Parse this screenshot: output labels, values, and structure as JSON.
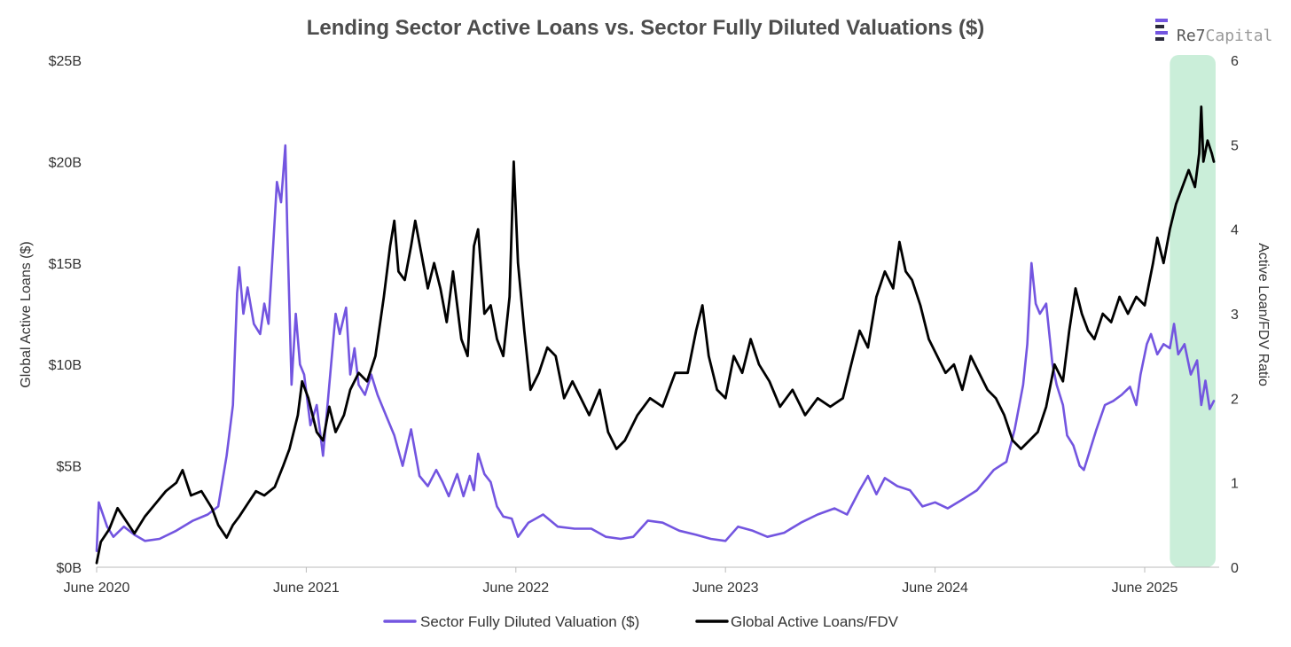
{
  "brand": {
    "name": "Re7",
    "suffix": "Capital"
  },
  "chart_data": {
    "type": "line",
    "title": "Lending Sector Active Loans vs. Sector Fully Diluted Valuations ($)",
    "ylabel_left": "Global Active Loans ($)",
    "ylabel_right": "Active Loan/FDV Ratio",
    "xlim": [
      2020.42,
      2025.75
    ],
    "ylim_left": [
      0,
      25
    ],
    "ylim_right": [
      0,
      6
    ],
    "x_ticks": [
      {
        "value": 2020.42,
        "label": "June 2020"
      },
      {
        "value": 2021.42,
        "label": "June 2021"
      },
      {
        "value": 2022.42,
        "label": "June 2022"
      },
      {
        "value": 2023.42,
        "label": "June 2023"
      },
      {
        "value": 2024.42,
        "label": "June 2024"
      },
      {
        "value": 2025.42,
        "label": "June 2025"
      }
    ],
    "y_ticks_left": [
      {
        "value": 0,
        "label": "$0B"
      },
      {
        "value": 5,
        "label": "$5B"
      },
      {
        "value": 10,
        "label": "$10B"
      },
      {
        "value": 15,
        "label": "$15B"
      },
      {
        "value": 20,
        "label": "$20B"
      },
      {
        "value": 25,
        "label": "$25B"
      }
    ],
    "y_ticks_right": [
      {
        "value": 0,
        "label": "0"
      },
      {
        "value": 1,
        "label": "1"
      },
      {
        "value": 2,
        "label": "2"
      },
      {
        "value": 3,
        "label": "3"
      },
      {
        "value": 4,
        "label": "4"
      },
      {
        "value": 5,
        "label": "5"
      },
      {
        "value": 6,
        "label": "6"
      }
    ],
    "highlight": {
      "x_start": 2025.54,
      "x_end": 2025.78,
      "color": "#b8e8cc"
    },
    "legend": [
      {
        "name": "Sector Fully Diluted Valuation ($)",
        "color": "#7355e0"
      },
      {
        "name": "Global Active Loans/FDV",
        "color": "#000000"
      }
    ],
    "series": [
      {
        "name": "Sector Fully Diluted Valuation ($)",
        "axis": "left",
        "unit": "$B",
        "color": "#7355e0",
        "points": [
          [
            2020.42,
            0.8
          ],
          [
            2020.43,
            3.2
          ],
          [
            2020.47,
            2.0
          ],
          [
            2020.5,
            1.5
          ],
          [
            2020.55,
            2.0
          ],
          [
            2020.6,
            1.6
          ],
          [
            2020.65,
            1.3
          ],
          [
            2020.72,
            1.4
          ],
          [
            2020.8,
            1.8
          ],
          [
            2020.88,
            2.3
          ],
          [
            2020.95,
            2.6
          ],
          [
            2021.0,
            3.0
          ],
          [
            2021.04,
            5.5
          ],
          [
            2021.07,
            8.0
          ],
          [
            2021.09,
            13.5
          ],
          [
            2021.1,
            14.8
          ],
          [
            2021.12,
            12.5
          ],
          [
            2021.14,
            13.8
          ],
          [
            2021.17,
            12.0
          ],
          [
            2021.2,
            11.5
          ],
          [
            2021.22,
            13.0
          ],
          [
            2021.24,
            12.0
          ],
          [
            2021.26,
            15.5
          ],
          [
            2021.28,
            19.0
          ],
          [
            2021.3,
            18.0
          ],
          [
            2021.32,
            20.8
          ],
          [
            2021.33,
            16.5
          ],
          [
            2021.35,
            9.0
          ],
          [
            2021.37,
            12.5
          ],
          [
            2021.39,
            10.0
          ],
          [
            2021.41,
            9.5
          ],
          [
            2021.44,
            7.0
          ],
          [
            2021.47,
            8.0
          ],
          [
            2021.5,
            5.5
          ],
          [
            2021.53,
            9.0
          ],
          [
            2021.56,
            12.5
          ],
          [
            2021.58,
            11.5
          ],
          [
            2021.61,
            12.8
          ],
          [
            2021.63,
            9.5
          ],
          [
            2021.65,
            10.8
          ],
          [
            2021.67,
            9.0
          ],
          [
            2021.7,
            8.5
          ],
          [
            2021.73,
            9.5
          ],
          [
            2021.76,
            8.5
          ],
          [
            2021.8,
            7.5
          ],
          [
            2021.84,
            6.5
          ],
          [
            2021.88,
            5.0
          ],
          [
            2021.92,
            6.8
          ],
          [
            2021.96,
            4.5
          ],
          [
            2022.0,
            4.0
          ],
          [
            2022.04,
            4.8
          ],
          [
            2022.07,
            4.2
          ],
          [
            2022.1,
            3.5
          ],
          [
            2022.14,
            4.6
          ],
          [
            2022.17,
            3.5
          ],
          [
            2022.2,
            4.5
          ],
          [
            2022.22,
            3.8
          ],
          [
            2022.24,
            5.6
          ],
          [
            2022.27,
            4.6
          ],
          [
            2022.3,
            4.2
          ],
          [
            2022.33,
            3.0
          ],
          [
            2022.36,
            2.5
          ],
          [
            2022.4,
            2.4
          ],
          [
            2022.43,
            1.5
          ],
          [
            2022.48,
            2.2
          ],
          [
            2022.55,
            2.6
          ],
          [
            2022.62,
            2.0
          ],
          [
            2022.7,
            1.9
          ],
          [
            2022.78,
            1.9
          ],
          [
            2022.85,
            1.5
          ],
          [
            2022.92,
            1.4
          ],
          [
            2022.98,
            1.5
          ],
          [
            2023.05,
            2.3
          ],
          [
            2023.12,
            2.2
          ],
          [
            2023.2,
            1.8
          ],
          [
            2023.28,
            1.6
          ],
          [
            2023.35,
            1.4
          ],
          [
            2023.42,
            1.3
          ],
          [
            2023.48,
            2.0
          ],
          [
            2023.55,
            1.8
          ],
          [
            2023.62,
            1.5
          ],
          [
            2023.7,
            1.7
          ],
          [
            2023.78,
            2.2
          ],
          [
            2023.86,
            2.6
          ],
          [
            2023.94,
            2.9
          ],
          [
            2024.0,
            2.6
          ],
          [
            2024.06,
            3.8
          ],
          [
            2024.1,
            4.5
          ],
          [
            2024.14,
            3.6
          ],
          [
            2024.18,
            4.4
          ],
          [
            2024.24,
            4.0
          ],
          [
            2024.3,
            3.8
          ],
          [
            2024.36,
            3.0
          ],
          [
            2024.42,
            3.2
          ],
          [
            2024.48,
            2.9
          ],
          [
            2024.56,
            3.4
          ],
          [
            2024.62,
            3.8
          ],
          [
            2024.7,
            4.8
          ],
          [
            2024.76,
            5.2
          ],
          [
            2024.8,
            6.8
          ],
          [
            2024.84,
            9.0
          ],
          [
            2024.86,
            11.0
          ],
          [
            2024.88,
            15.0
          ],
          [
            2024.9,
            13.0
          ],
          [
            2024.92,
            12.5
          ],
          [
            2024.95,
            13.0
          ],
          [
            2024.98,
            10.0
          ],
          [
            2025.0,
            9.0
          ],
          [
            2025.03,
            8.0
          ],
          [
            2025.05,
            6.5
          ],
          [
            2025.08,
            6.0
          ],
          [
            2025.11,
            5.0
          ],
          [
            2025.13,
            4.8
          ],
          [
            2025.16,
            5.8
          ],
          [
            2025.19,
            6.8
          ],
          [
            2025.23,
            8.0
          ],
          [
            2025.27,
            8.2
          ],
          [
            2025.31,
            8.5
          ],
          [
            2025.35,
            8.9
          ],
          [
            2025.38,
            8.0
          ],
          [
            2025.4,
            9.5
          ],
          [
            2025.43,
            11.0
          ],
          [
            2025.45,
            11.5
          ],
          [
            2025.48,
            10.5
          ],
          [
            2025.51,
            11.0
          ],
          [
            2025.54,
            10.8
          ],
          [
            2025.56,
            12.0
          ],
          [
            2025.58,
            10.5
          ],
          [
            2025.61,
            11.0
          ],
          [
            2025.64,
            9.5
          ],
          [
            2025.67,
            10.2
          ],
          [
            2025.69,
            8.0
          ],
          [
            2025.71,
            9.2
          ],
          [
            2025.73,
            7.8
          ],
          [
            2025.75,
            8.2
          ]
        ]
      },
      {
        "name": "Global Active Loans/FDV",
        "axis": "right",
        "unit": "ratio",
        "color": "#000000",
        "points": [
          [
            2020.42,
            0.05
          ],
          [
            2020.44,
            0.3
          ],
          [
            2020.48,
            0.45
          ],
          [
            2020.52,
            0.7
          ],
          [
            2020.56,
            0.55
          ],
          [
            2020.6,
            0.4
          ],
          [
            2020.65,
            0.6
          ],
          [
            2020.7,
            0.75
          ],
          [
            2020.75,
            0.9
          ],
          [
            2020.8,
            1.0
          ],
          [
            2020.83,
            1.15
          ],
          [
            2020.87,
            0.85
          ],
          [
            2020.92,
            0.9
          ],
          [
            2020.97,
            0.7
          ],
          [
            2021.0,
            0.5
          ],
          [
            2021.04,
            0.35
          ],
          [
            2021.07,
            0.5
          ],
          [
            2021.1,
            0.6
          ],
          [
            2021.14,
            0.75
          ],
          [
            2021.18,
            0.9
          ],
          [
            2021.22,
            0.85
          ],
          [
            2021.27,
            0.95
          ],
          [
            2021.31,
            1.2
          ],
          [
            2021.34,
            1.4
          ],
          [
            2021.38,
            1.8
          ],
          [
            2021.4,
            2.2
          ],
          [
            2021.43,
            2.0
          ],
          [
            2021.47,
            1.6
          ],
          [
            2021.5,
            1.5
          ],
          [
            2021.53,
            1.9
          ],
          [
            2021.56,
            1.6
          ],
          [
            2021.6,
            1.8
          ],
          [
            2021.63,
            2.1
          ],
          [
            2021.67,
            2.3
          ],
          [
            2021.71,
            2.2
          ],
          [
            2021.75,
            2.5
          ],
          [
            2021.79,
            3.2
          ],
          [
            2021.82,
            3.8
          ],
          [
            2021.84,
            4.1
          ],
          [
            2021.86,
            3.5
          ],
          [
            2021.89,
            3.4
          ],
          [
            2021.92,
            3.8
          ],
          [
            2021.94,
            4.1
          ],
          [
            2021.97,
            3.7
          ],
          [
            2022.0,
            3.3
          ],
          [
            2022.03,
            3.6
          ],
          [
            2022.06,
            3.3
          ],
          [
            2022.09,
            2.9
          ],
          [
            2022.12,
            3.5
          ],
          [
            2022.16,
            2.7
          ],
          [
            2022.19,
            2.5
          ],
          [
            2022.22,
            3.8
          ],
          [
            2022.24,
            4.0
          ],
          [
            2022.27,
            3.0
          ],
          [
            2022.3,
            3.1
          ],
          [
            2022.33,
            2.7
          ],
          [
            2022.36,
            2.5
          ],
          [
            2022.39,
            3.2
          ],
          [
            2022.41,
            4.8
          ],
          [
            2022.43,
            3.6
          ],
          [
            2022.46,
            2.8
          ],
          [
            2022.49,
            2.1
          ],
          [
            2022.53,
            2.3
          ],
          [
            2022.57,
            2.6
          ],
          [
            2022.61,
            2.5
          ],
          [
            2022.65,
            2.0
          ],
          [
            2022.69,
            2.2
          ],
          [
            2022.73,
            2.0
          ],
          [
            2022.77,
            1.8
          ],
          [
            2022.82,
            2.1
          ],
          [
            2022.86,
            1.6
          ],
          [
            2022.9,
            1.4
          ],
          [
            2022.94,
            1.5
          ],
          [
            2023.0,
            1.8
          ],
          [
            2023.06,
            2.0
          ],
          [
            2023.12,
            1.9
          ],
          [
            2023.18,
            2.3
          ],
          [
            2023.24,
            2.3
          ],
          [
            2023.28,
            2.8
          ],
          [
            2023.31,
            3.1
          ],
          [
            2023.34,
            2.5
          ],
          [
            2023.38,
            2.1
          ],
          [
            2023.42,
            2.0
          ],
          [
            2023.46,
            2.5
          ],
          [
            2023.5,
            2.3
          ],
          [
            2023.54,
            2.7
          ],
          [
            2023.58,
            2.4
          ],
          [
            2023.63,
            2.2
          ],
          [
            2023.68,
            1.9
          ],
          [
            2023.74,
            2.1
          ],
          [
            2023.8,
            1.8
          ],
          [
            2023.86,
            2.0
          ],
          [
            2023.92,
            1.9
          ],
          [
            2023.98,
            2.0
          ],
          [
            2024.02,
            2.4
          ],
          [
            2024.06,
            2.8
          ],
          [
            2024.1,
            2.6
          ],
          [
            2024.14,
            3.2
          ],
          [
            2024.18,
            3.5
          ],
          [
            2024.22,
            3.3
          ],
          [
            2024.25,
            3.85
          ],
          [
            2024.28,
            3.5
          ],
          [
            2024.31,
            3.4
          ],
          [
            2024.35,
            3.1
          ],
          [
            2024.39,
            2.7
          ],
          [
            2024.43,
            2.5
          ],
          [
            2024.47,
            2.3
          ],
          [
            2024.51,
            2.4
          ],
          [
            2024.55,
            2.1
          ],
          [
            2024.59,
            2.5
          ],
          [
            2024.63,
            2.3
          ],
          [
            2024.67,
            2.1
          ],
          [
            2024.71,
            2.0
          ],
          [
            2024.75,
            1.8
          ],
          [
            2024.79,
            1.5
          ],
          [
            2024.83,
            1.4
          ],
          [
            2024.87,
            1.5
          ],
          [
            2024.91,
            1.6
          ],
          [
            2024.95,
            1.9
          ],
          [
            2024.99,
            2.4
          ],
          [
            2025.03,
            2.2
          ],
          [
            2025.06,
            2.8
          ],
          [
            2025.09,
            3.3
          ],
          [
            2025.12,
            3.0
          ],
          [
            2025.15,
            2.8
          ],
          [
            2025.18,
            2.7
          ],
          [
            2025.22,
            3.0
          ],
          [
            2025.26,
            2.9
          ],
          [
            2025.3,
            3.2
          ],
          [
            2025.34,
            3.0
          ],
          [
            2025.38,
            3.2
          ],
          [
            2025.42,
            3.1
          ],
          [
            2025.46,
            3.6
          ],
          [
            2025.48,
            3.9
          ],
          [
            2025.51,
            3.6
          ],
          [
            2025.54,
            4.0
          ],
          [
            2025.57,
            4.3
          ],
          [
            2025.6,
            4.5
          ],
          [
            2025.63,
            4.7
          ],
          [
            2025.66,
            4.5
          ],
          [
            2025.68,
            4.9
          ],
          [
            2025.69,
            5.45
          ],
          [
            2025.7,
            4.8
          ],
          [
            2025.72,
            5.05
          ],
          [
            2025.74,
            4.9
          ],
          [
            2025.75,
            4.8
          ]
        ]
      }
    ]
  }
}
